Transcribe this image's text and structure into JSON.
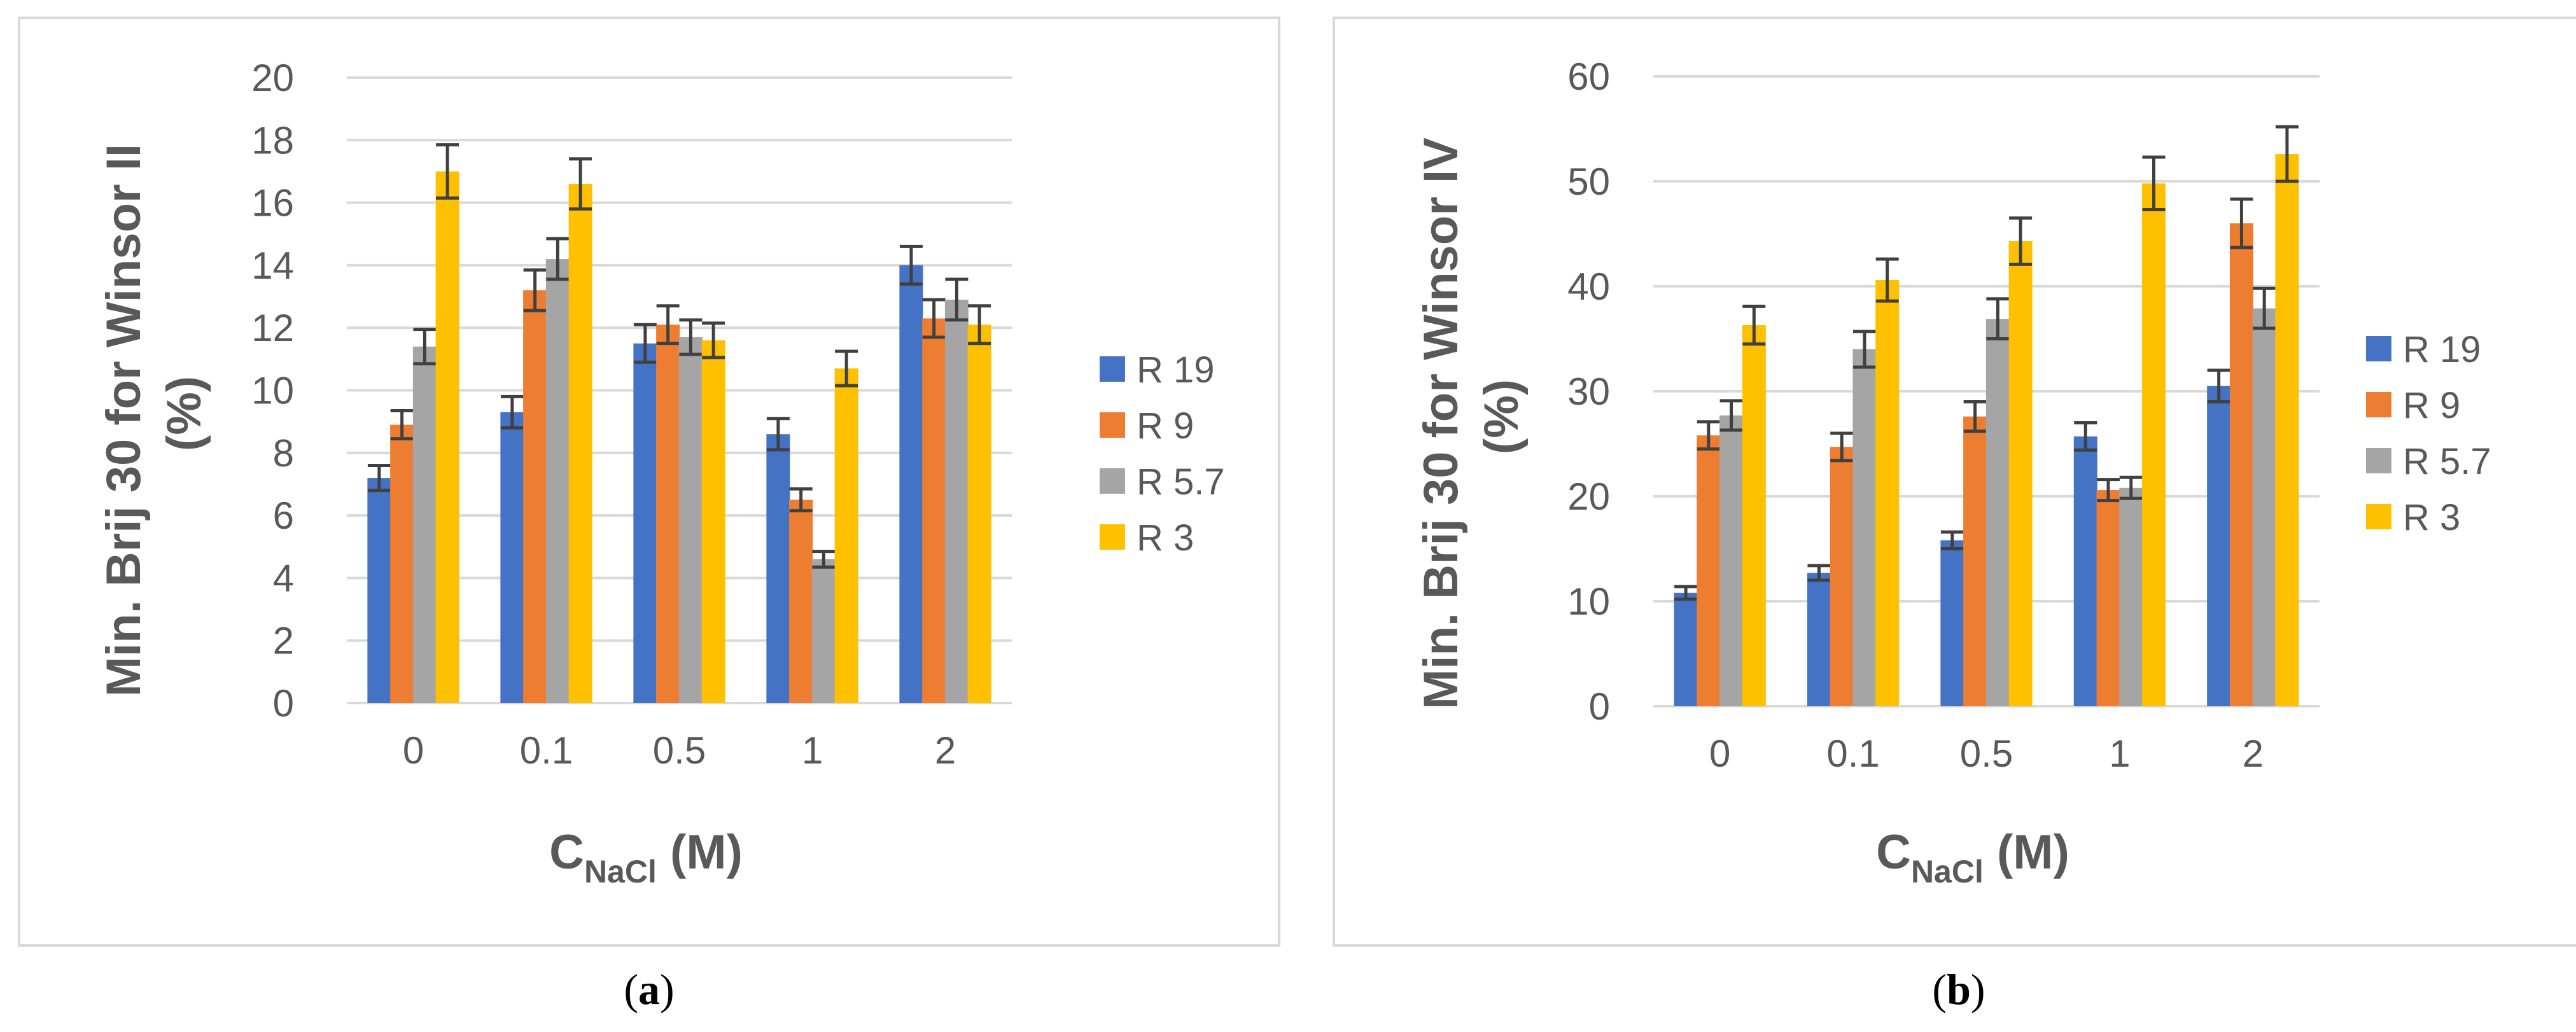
{
  "chart_data": [
    {
      "type": "bar",
      "panel": "a",
      "caption_open": "(",
      "caption_letter": "a",
      "caption_close": ")",
      "categories": [
        "0",
        "0.1",
        "0.5",
        "1",
        "2"
      ],
      "series": [
        {
          "name": "R 19",
          "color": "#4472C4",
          "values": [
            7.2,
            9.3,
            11.5,
            8.6,
            14.0
          ],
          "errors": [
            0.4,
            0.5,
            0.6,
            0.5,
            0.6
          ]
        },
        {
          "name": "R 9",
          "color": "#ED7D31",
          "values": [
            8.9,
            13.2,
            12.1,
            6.5,
            12.3
          ],
          "errors": [
            0.45,
            0.65,
            0.6,
            0.35,
            0.6
          ]
        },
        {
          "name": "R 5.7",
          "color": "#A5A5A5",
          "values": [
            11.4,
            14.2,
            11.7,
            4.6,
            12.9
          ],
          "errors": [
            0.55,
            0.65,
            0.55,
            0.25,
            0.65
          ]
        },
        {
          "name": "R 3",
          "color": "#FFC000",
          "values": [
            17.0,
            16.6,
            11.6,
            10.7,
            12.1
          ],
          "errors": [
            0.85,
            0.8,
            0.55,
            0.55,
            0.6
          ]
        }
      ],
      "ylim": [
        0,
        20
      ],
      "yticks": [
        "0",
        "2",
        "4",
        "6",
        "8",
        "10",
        "12",
        "14",
        "16",
        "18",
        "20"
      ],
      "ylabel_line1": "Min. Brij 30 for Winsor II",
      "ylabel_line2": "(%)",
      "xlabel_main": "C",
      "xlabel_sub": "NaCl",
      "xlabel_unit": " (M)",
      "legend_position": "right",
      "grid": true
    },
    {
      "type": "bar",
      "panel": "b",
      "caption_open": "(",
      "caption_letter": "b",
      "caption_close": ")",
      "categories": [
        "0",
        "0.1",
        "0.5",
        "1",
        "2"
      ],
      "series": [
        {
          "name": "R 19",
          "color": "#4472C4",
          "values": [
            10.8,
            12.7,
            15.8,
            25.7,
            30.5
          ],
          "errors": [
            0.6,
            0.7,
            0.8,
            1.3,
            1.5
          ]
        },
        {
          "name": "R 9",
          "color": "#ED7D31",
          "values": [
            25.8,
            24.7,
            27.6,
            20.6,
            46.0
          ],
          "errors": [
            1.3,
            1.3,
            1.4,
            1.0,
            2.3
          ]
        },
        {
          "name": "R 5.7",
          "color": "#A5A5A5",
          "values": [
            27.7,
            34.0,
            36.9,
            20.8,
            37.9
          ],
          "errors": [
            1.4,
            1.7,
            1.9,
            1.0,
            1.9
          ]
        },
        {
          "name": "R 3",
          "color": "#FFC000",
          "values": [
            36.3,
            40.6,
            44.3,
            49.8,
            52.6
          ],
          "errors": [
            1.8,
            2.0,
            2.2,
            2.5,
            2.6
          ]
        }
      ],
      "ylim": [
        0,
        60
      ],
      "yticks": [
        "0",
        "10",
        "20",
        "30",
        "40",
        "50",
        "60"
      ],
      "ylabel_line1": "Min. Brij 30 for Winsor IV",
      "ylabel_line2": "(%)",
      "xlabel_main": "C",
      "xlabel_sub": "NaCl",
      "xlabel_unit": " (M)",
      "legend_position": "right",
      "grid": true
    }
  ]
}
